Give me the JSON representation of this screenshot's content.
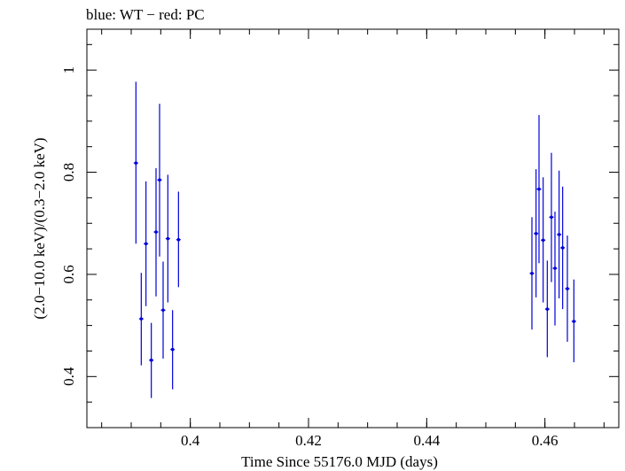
{
  "chart_data": {
    "type": "scatter",
    "title": "blue: WT − red: PC",
    "xlabel": "Time Since 55176.0 MJD (days)",
    "ylabel": "(2.0−10.0 keV)/(0.3−2.0 keV)",
    "xlim": [
      0.3825,
      0.4725
    ],
    "ylim": [
      0.3,
      1.08
    ],
    "x_ticks": [
      {
        "value": 0.4,
        "label": "0.4"
      },
      {
        "value": 0.42,
        "label": "0.42"
      },
      {
        "value": 0.44,
        "label": "0.44"
      },
      {
        "value": 0.46,
        "label": "0.46"
      }
    ],
    "y_ticks": [
      {
        "value": 0.4,
        "label": "0.4"
      },
      {
        "value": 0.6,
        "label": "0.6"
      },
      {
        "value": 0.8,
        "label": "0.8"
      },
      {
        "value": 1.0,
        "label": "1"
      }
    ],
    "series": [
      {
        "name": "WT",
        "color": "#0000dd",
        "points": [
          {
            "x": 0.3908,
            "y": 0.818,
            "ylo": 0.66,
            "yhi": 0.977
          },
          {
            "x": 0.3917,
            "y": 0.513,
            "ylo": 0.422,
            "yhi": 0.603
          },
          {
            "x": 0.3925,
            "y": 0.66,
            "ylo": 0.538,
            "yhi": 0.782
          },
          {
            "x": 0.3934,
            "y": 0.432,
            "ylo": 0.358,
            "yhi": 0.505
          },
          {
            "x": 0.3942,
            "y": 0.683,
            "ylo": 0.557,
            "yhi": 0.808
          },
          {
            "x": 0.3948,
            "y": 0.785,
            "ylo": 0.635,
            "yhi": 0.934
          },
          {
            "x": 0.3954,
            "y": 0.53,
            "ylo": 0.435,
            "yhi": 0.625
          },
          {
            "x": 0.3962,
            "y": 0.67,
            "ylo": 0.545,
            "yhi": 0.795
          },
          {
            "x": 0.397,
            "y": 0.453,
            "ylo": 0.375,
            "yhi": 0.53
          },
          {
            "x": 0.398,
            "y": 0.668,
            "ylo": 0.575,
            "yhi": 0.762
          },
          {
            "x": 0.4578,
            "y": 0.602,
            "ylo": 0.492,
            "yhi": 0.712
          },
          {
            "x": 0.4585,
            "y": 0.68,
            "ylo": 0.555,
            "yhi": 0.806
          },
          {
            "x": 0.459,
            "y": 0.767,
            "ylo": 0.622,
            "yhi": 0.912
          },
          {
            "x": 0.4597,
            "y": 0.667,
            "ylo": 0.545,
            "yhi": 0.79
          },
          {
            "x": 0.4604,
            "y": 0.532,
            "ylo": 0.438,
            "yhi": 0.627
          },
          {
            "x": 0.4611,
            "y": 0.712,
            "ylo": 0.585,
            "yhi": 0.838
          },
          {
            "x": 0.4617,
            "y": 0.612,
            "ylo": 0.5,
            "yhi": 0.723
          },
          {
            "x": 0.4624,
            "y": 0.678,
            "ylo": 0.553,
            "yhi": 0.803
          },
          {
            "x": 0.463,
            "y": 0.652,
            "ylo": 0.532,
            "yhi": 0.772
          },
          {
            "x": 0.4638,
            "y": 0.572,
            "ylo": 0.468,
            "yhi": 0.676
          },
          {
            "x": 0.4649,
            "y": 0.508,
            "ylo": 0.428,
            "yhi": 0.59
          }
        ]
      }
    ],
    "grid": false,
    "legend": "none"
  }
}
